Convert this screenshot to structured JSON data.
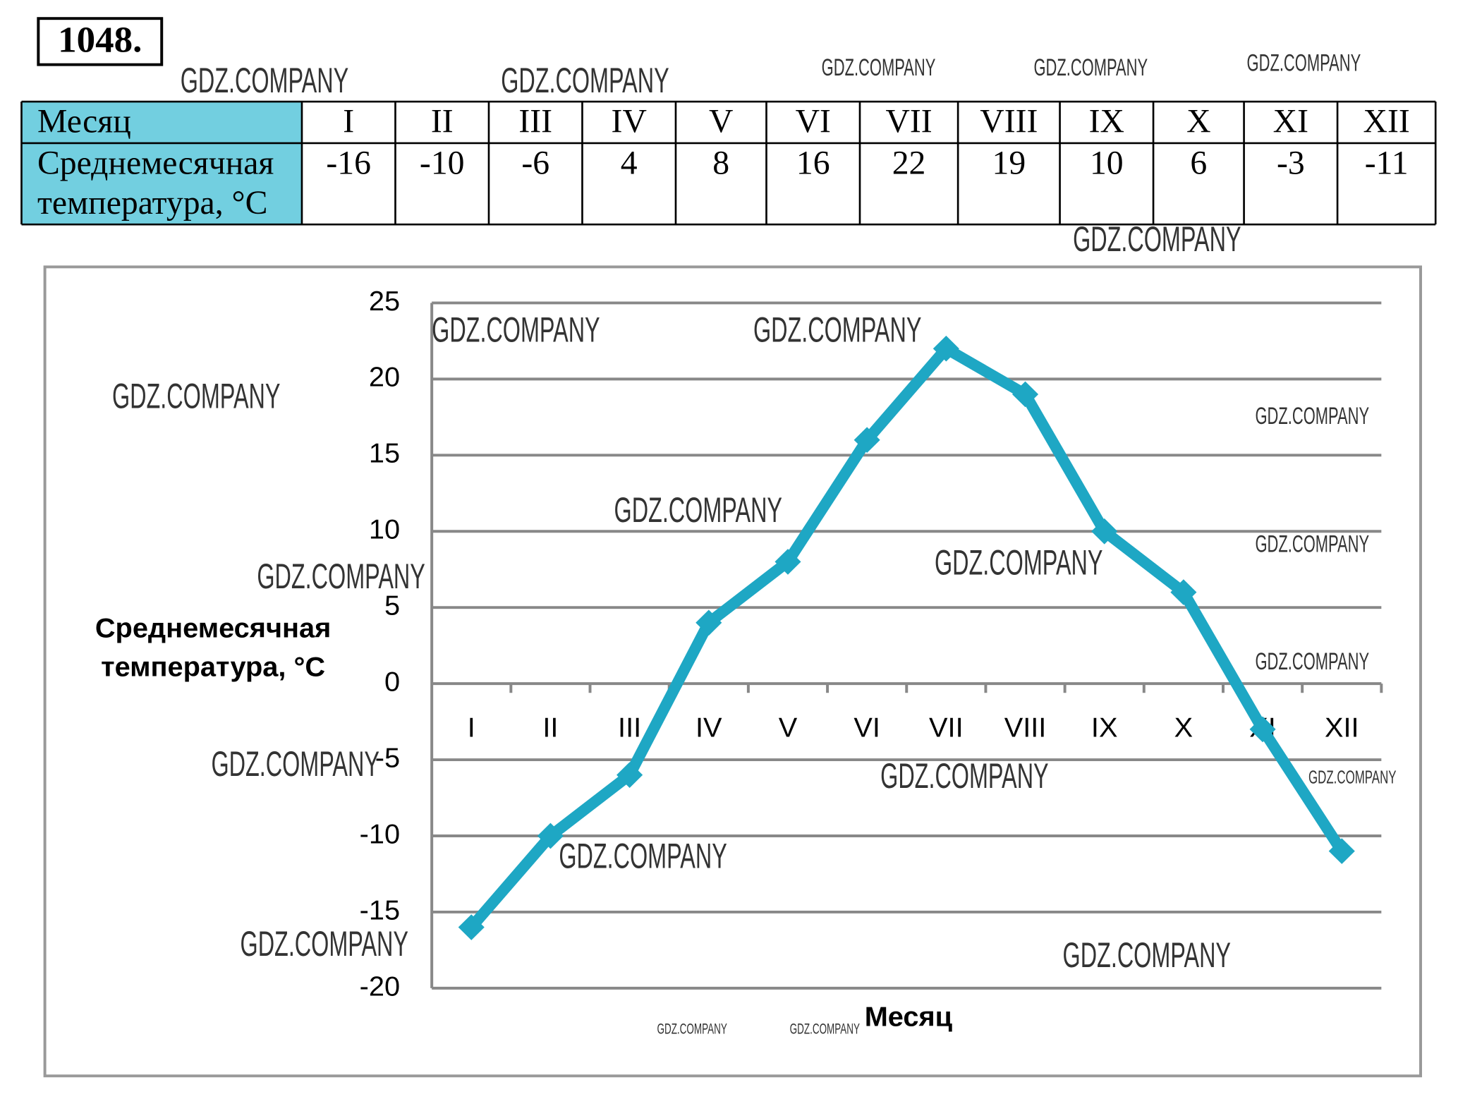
{
  "problem_number": "1048.",
  "table": {
    "header": [
      "Месяц",
      "I",
      "II",
      "III",
      "IV",
      "V",
      "VI",
      "VII",
      "VIII",
      "IX",
      "X",
      "XI",
      "XII"
    ],
    "row_label": [
      "Среднемесячная",
      "температура, °C"
    ],
    "values": [
      -16,
      -10,
      -6,
      4,
      8,
      16,
      22,
      19,
      10,
      6,
      -3,
      -11
    ]
  },
  "watermarks": [
    "GDZ.COMPANY",
    "GDZ.COMPANY",
    "GDZ.COMPANY",
    "GDZ.COMPANY",
    "GDZ.COMPANY",
    "GDZ.COMPANY",
    "GDZ.COMPANY",
    "GDZ.COMPANY",
    "GDZ.COMPANY",
    "GDZ.COMPANY",
    "GDZ.COMPANY",
    "GDZ.COMPANY",
    "GDZ.COMPANY",
    "GDZ.COMPANY",
    "GDZ.COMPANY",
    "GDZ.COMPANY",
    "GDZ.COMPANY",
    "GDZ.COMPANY",
    "GDZ.COMPANY",
    "GDZ.COMPANY",
    "GDZ.COMPANY",
    "GDZ.COMPANY",
    "GDZ.COMPANY"
  ],
  "chart_data": {
    "type": "line",
    "categories": [
      "I",
      "II",
      "III",
      "IV",
      "V",
      "VI",
      "VII",
      "VIII",
      "IX",
      "X",
      "XI",
      "XII"
    ],
    "values": [
      -16,
      -10,
      -6,
      4,
      8,
      16,
      22,
      19,
      10,
      6,
      -3,
      -11
    ],
    "color": "#1ea7c4",
    "y_label": [
      "Среднемесячная",
      "температура, °C"
    ],
    "x_label": "Месяц",
    "ylim": [
      -20,
      25
    ],
    "yticks": [
      -20,
      -15,
      -10,
      -5,
      0,
      5,
      10,
      15,
      20,
      25
    ],
    "grid": true
  }
}
